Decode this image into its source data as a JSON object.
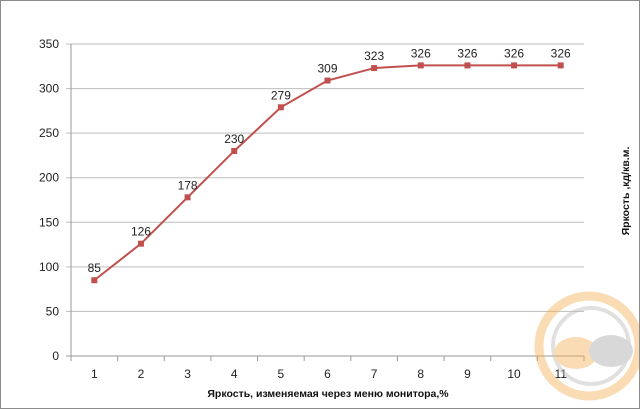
{
  "chart_data": {
    "type": "line",
    "title": "",
    "xlabel": "Яркость, изменяемая через меню монитора,%",
    "ylabel": "Яркость ,кд/кв.м.",
    "categories": [
      "1",
      "2",
      "3",
      "4",
      "5",
      "6",
      "7",
      "8",
      "9",
      "10",
      "11"
    ],
    "series": [
      {
        "values": [
          85,
          126,
          178,
          230,
          279,
          309,
          323,
          326,
          326,
          326,
          326
        ],
        "color": "#c0504d"
      }
    ],
    "ylim": [
      0,
      350
    ],
    "yticks": [
      0,
      50,
      100,
      150,
      200,
      250,
      300,
      350
    ],
    "grid": true,
    "legend": "none",
    "data_labels": true
  }
}
